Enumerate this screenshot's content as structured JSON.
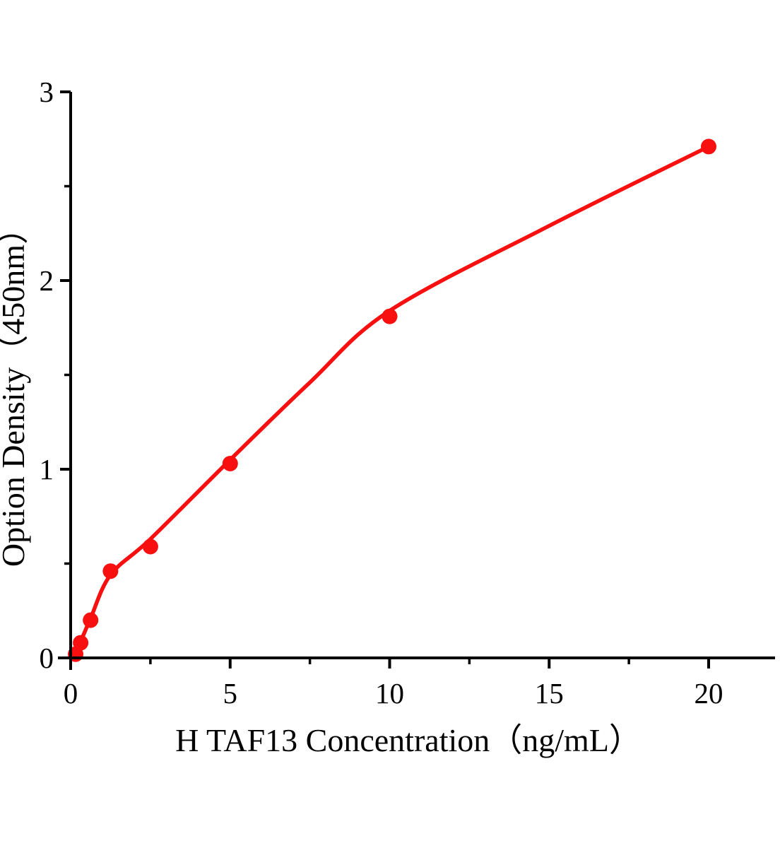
{
  "chart_data": {
    "type": "scatter",
    "title": "",
    "xlabel": "H TAF13 Concentration（ng/mL）",
    "ylabel": "Option Density（450nm）",
    "xlim": [
      0,
      22.1
    ],
    "ylim": [
      0,
      3
    ],
    "x_major_ticks": [
      0,
      5,
      10,
      15,
      20
    ],
    "x_minor_ticks": [
      2.5,
      7.5,
      12.5,
      17.5
    ],
    "y_major_ticks": [
      0,
      1,
      2,
      3
    ],
    "y_minor_ticks": [
      0.5,
      1.5,
      2.5
    ],
    "grid": false,
    "legend_position": "none",
    "series": [
      {
        "name": "standard-points",
        "kind": "scatter",
        "color": "#f80f0f",
        "points": [
          [
            0.156,
            0.02
          ],
          [
            0.313,
            0.08
          ],
          [
            0.625,
            0.2
          ],
          [
            1.25,
            0.46
          ],
          [
            2.5,
            0.59
          ],
          [
            5,
            1.03
          ],
          [
            10,
            1.81
          ],
          [
            20,
            2.71
          ]
        ]
      },
      {
        "name": "fitted-curve",
        "kind": "line",
        "color": "#f80f0f",
        "points": [
          [
            0,
            0.01
          ],
          [
            0.313,
            0.09
          ],
          [
            0.625,
            0.21
          ],
          [
            1.25,
            0.44
          ],
          [
            2.5,
            0.63
          ],
          [
            5,
            1.05
          ],
          [
            7.5,
            1.46
          ],
          [
            10,
            1.84
          ],
          [
            15,
            2.29
          ],
          [
            20,
            2.71
          ]
        ]
      }
    ],
    "colors": {
      "axis": "#000000",
      "accent_red": "#f80f0f",
      "background": "#ffffff"
    }
  }
}
